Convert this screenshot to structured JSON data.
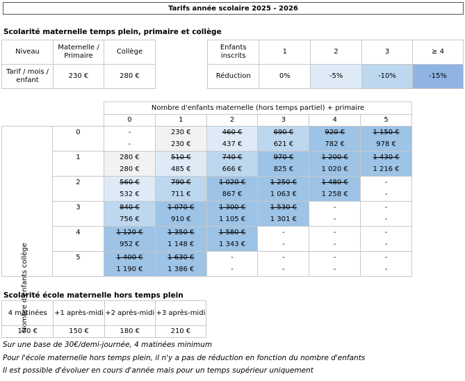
{
  "title": "Tarifs année scolaire 2025 - 2026",
  "section1": {
    "title": "Scolarité maternelle temps plein, primaire et collège",
    "headers": [
      "Niveau",
      "Maternelle / Primaire",
      "Collège"
    ],
    "row": [
      "Tarif / mois / enfant",
      "230 €",
      "280 €"
    ]
  },
  "reduction": {
    "header_label": "Enfants inscrits",
    "counts": [
      "1",
      "2",
      "3",
      "≥ 4"
    ],
    "row_label": "Réduction",
    "values": [
      "0%",
      "-5%",
      "-10%",
      "-15%"
    ]
  },
  "grid": {
    "col_title": "Nombre d'enfants maternelle (hors temps partiel) + primaire",
    "row_title": "Nombre d'enfants collège",
    "cols": [
      "0",
      "1",
      "2",
      "3",
      "4",
      "5"
    ],
    "rows": [
      {
        "label": "0",
        "cells": [
          [
            "-",
            "-"
          ],
          [
            "230 €",
            "230 €"
          ],
          [
            "460 €",
            "437 €"
          ],
          [
            "690 €",
            "621 €"
          ],
          [
            "920 €",
            "782 €"
          ],
          [
            "1 150 €",
            "978 €"
          ]
        ]
      },
      {
        "label": "1",
        "cells": [
          [
            "280 €",
            "280 €"
          ],
          [
            "510 €",
            "485 €"
          ],
          [
            "740 €",
            "666 €"
          ],
          [
            "970 €",
            "825 €"
          ],
          [
            "1 200 €",
            "1 020 €"
          ],
          [
            "1 430 €",
            "1 216 €"
          ]
        ]
      },
      {
        "label": "2",
        "cells": [
          [
            "560 €",
            "532 €"
          ],
          [
            "790 €",
            "711 €"
          ],
          [
            "1 020 €",
            "867 €"
          ],
          [
            "1 250 €",
            "1 063 €"
          ],
          [
            "1 480 €",
            "1 258 €"
          ],
          [
            "-",
            "-"
          ]
        ]
      },
      {
        "label": "3",
        "cells": [
          [
            "840 €",
            "756 €"
          ],
          [
            "1 070 €",
            "910 €"
          ],
          [
            "1 300 €",
            "1 105 €"
          ],
          [
            "1 530 €",
            "1 301 €"
          ],
          [
            "-",
            "-"
          ],
          [
            "-",
            "-"
          ]
        ]
      },
      {
        "label": "4",
        "cells": [
          [
            "1 120 €",
            "952 €"
          ],
          [
            "1 350 €",
            "1 148 €"
          ],
          [
            "1 580 €",
            "1 343 €"
          ],
          [
            "-",
            "-"
          ],
          [
            "-",
            "-"
          ],
          [
            "-",
            "-"
          ]
        ]
      },
      {
        "label": "5",
        "cells": [
          [
            "1 400 €",
            "1 190 €"
          ],
          [
            "1 630 €",
            "1 386 €"
          ],
          [
            "-",
            "-"
          ],
          [
            "-",
            "-"
          ],
          [
            "-",
            "-"
          ],
          [
            "-",
            "-"
          ]
        ]
      }
    ]
  },
  "section2": {
    "title": "Scolarité école maternelle hors temps plein",
    "headers": [
      "4 matinées",
      "+1 après-midi",
      "+2 après-midi",
      "+3 après-midi"
    ],
    "values": [
      "120 €",
      "150 €",
      "180 €",
      "210 €"
    ]
  },
  "notes": [
    "Sur une base de 30€/demi-journée, 4 matinées minimum",
    "Pour l'école maternelle hors temps plein, il n'y a pas de réduction en fonction du nombre d'enfants",
    "Il est possible d'évoluer en cours d'année mais pour un temps supérieur uniquement"
  ]
}
